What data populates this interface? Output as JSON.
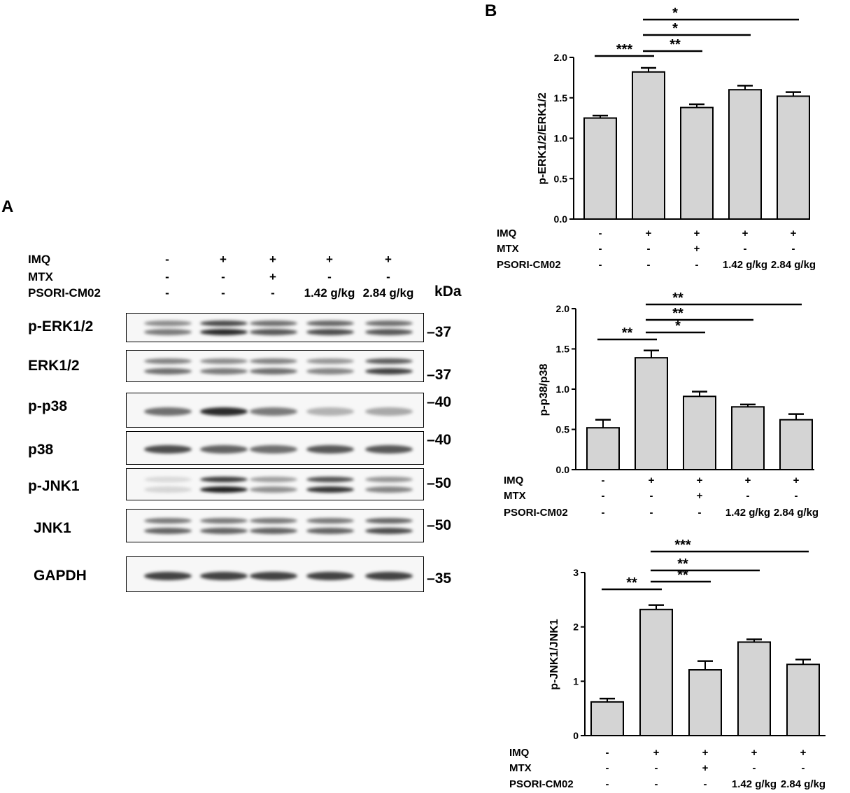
{
  "panel_a": {
    "letter": "A",
    "conditions": [
      {
        "label": "IMQ",
        "values": [
          "-",
          "+",
          "+",
          "+",
          "+"
        ]
      },
      {
        "label": "MTX",
        "values": [
          "-",
          "-",
          "+",
          "-",
          "-"
        ]
      },
      {
        "label": "PSORI-CM02",
        "values": [
          "-",
          "-",
          "-",
          "1.42 g/kg",
          "2.84 g/kg"
        ]
      }
    ],
    "kda_header": "kDa",
    "blots": [
      {
        "label": "p-ERK1/2",
        "kda": "37",
        "intensity": [
          0.55,
          0.9,
          0.7,
          0.75,
          0.7
        ]
      },
      {
        "label": "ERK1/2",
        "kda": "37",
        "intensity": [
          0.6,
          0.55,
          0.6,
          0.5,
          0.8
        ]
      },
      {
        "label": "p-p38",
        "kda": "40",
        "intensity": [
          0.6,
          0.9,
          0.55,
          0.3,
          0.35
        ]
      },
      {
        "label": "p38",
        "kda": "40",
        "intensity": [
          0.75,
          0.65,
          0.6,
          0.7,
          0.7
        ]
      },
      {
        "label": "p-JNK1",
        "kda": "50",
        "intensity": [
          0.15,
          0.95,
          0.45,
          0.85,
          0.5
        ]
      },
      {
        "label": "JNK1",
        "kda": "50",
        "intensity": [
          0.65,
          0.65,
          0.65,
          0.65,
          0.75
        ]
      },
      {
        "label": "GAPDH",
        "kda": "35",
        "intensity": [
          0.8,
          0.8,
          0.8,
          0.8,
          0.8
        ]
      }
    ]
  },
  "panel_b": {
    "letter": "B"
  },
  "chart_data": [
    {
      "type": "bar",
      "ylabel": "p-ERK1/2/ERK1/2",
      "ylim": [
        0,
        2.0
      ],
      "yticks": [
        "0.0",
        "0.5",
        "1.0",
        "1.5",
        "2.0"
      ],
      "values": [
        1.25,
        1.82,
        1.38,
        1.6,
        1.52
      ],
      "errors": [
        0.03,
        0.05,
        0.04,
        0.05,
        0.05
      ],
      "conditions": [
        {
          "label": "IMQ",
          "values": [
            "-",
            "+",
            "+",
            "+",
            "+"
          ]
        },
        {
          "label": "MTX",
          "values": [
            "-",
            "-",
            "+",
            "-",
            "-"
          ]
        },
        {
          "label": "PSORI-CM02",
          "values": [
            "-",
            "-",
            "-",
            "1.42 g/kg",
            "2.84 g/kg"
          ]
        }
      ],
      "significance": [
        {
          "from": 0,
          "to": 1,
          "label": "***"
        },
        {
          "from": 1,
          "to": 2,
          "label": "**"
        },
        {
          "from": 1,
          "to": 3,
          "label": "*"
        },
        {
          "from": 1,
          "to": 4,
          "label": "*"
        }
      ]
    },
    {
      "type": "bar",
      "ylabel": "p-p38/p38",
      "ylim": [
        0,
        2.0
      ],
      "yticks": [
        "0.0",
        "0.5",
        "1.0",
        "1.5",
        "2.0"
      ],
      "values": [
        0.52,
        1.39,
        0.91,
        0.78,
        0.62
      ],
      "errors": [
        0.1,
        0.09,
        0.06,
        0.03,
        0.07
      ],
      "conditions": [
        {
          "label": "IMQ",
          "values": [
            "-",
            "+",
            "+",
            "+",
            "+"
          ]
        },
        {
          "label": "MTX",
          "values": [
            "-",
            "-",
            "+",
            "-",
            "-"
          ]
        },
        {
          "label": "PSORI-CM02",
          "values": [
            "-",
            "-",
            "-",
            "1.42 g/kg",
            "2.84 g/kg"
          ]
        }
      ],
      "significance": [
        {
          "from": 0,
          "to": 1,
          "label": "**"
        },
        {
          "from": 1,
          "to": 2,
          "label": "*"
        },
        {
          "from": 1,
          "to": 3,
          "label": "**"
        },
        {
          "from": 1,
          "to": 4,
          "label": "**"
        }
      ]
    },
    {
      "type": "bar",
      "ylabel": "p-JNK1/JNK1",
      "ylim": [
        0,
        3
      ],
      "yticks": [
        "0",
        "1",
        "2",
        "3"
      ],
      "values": [
        0.62,
        2.32,
        1.21,
        1.72,
        1.31
      ],
      "errors": [
        0.06,
        0.08,
        0.16,
        0.05,
        0.09
      ],
      "conditions": [
        {
          "label": "IMQ",
          "values": [
            "-",
            "+",
            "+",
            "+",
            "+"
          ]
        },
        {
          "label": "MTX",
          "values": [
            "-",
            "-",
            "+",
            "-",
            "-"
          ]
        },
        {
          "label": "PSORI-CM02",
          "values": [
            "-",
            "-",
            "-",
            "1.42 g/kg",
            "2.84 g/kg"
          ]
        }
      ],
      "significance": [
        {
          "from": 0,
          "to": 1,
          "label": "**"
        },
        {
          "from": 1,
          "to": 2,
          "label": "**"
        },
        {
          "from": 1,
          "to": 3,
          "label": "**"
        },
        {
          "from": 1,
          "to": 4,
          "label": "***"
        }
      ]
    }
  ]
}
